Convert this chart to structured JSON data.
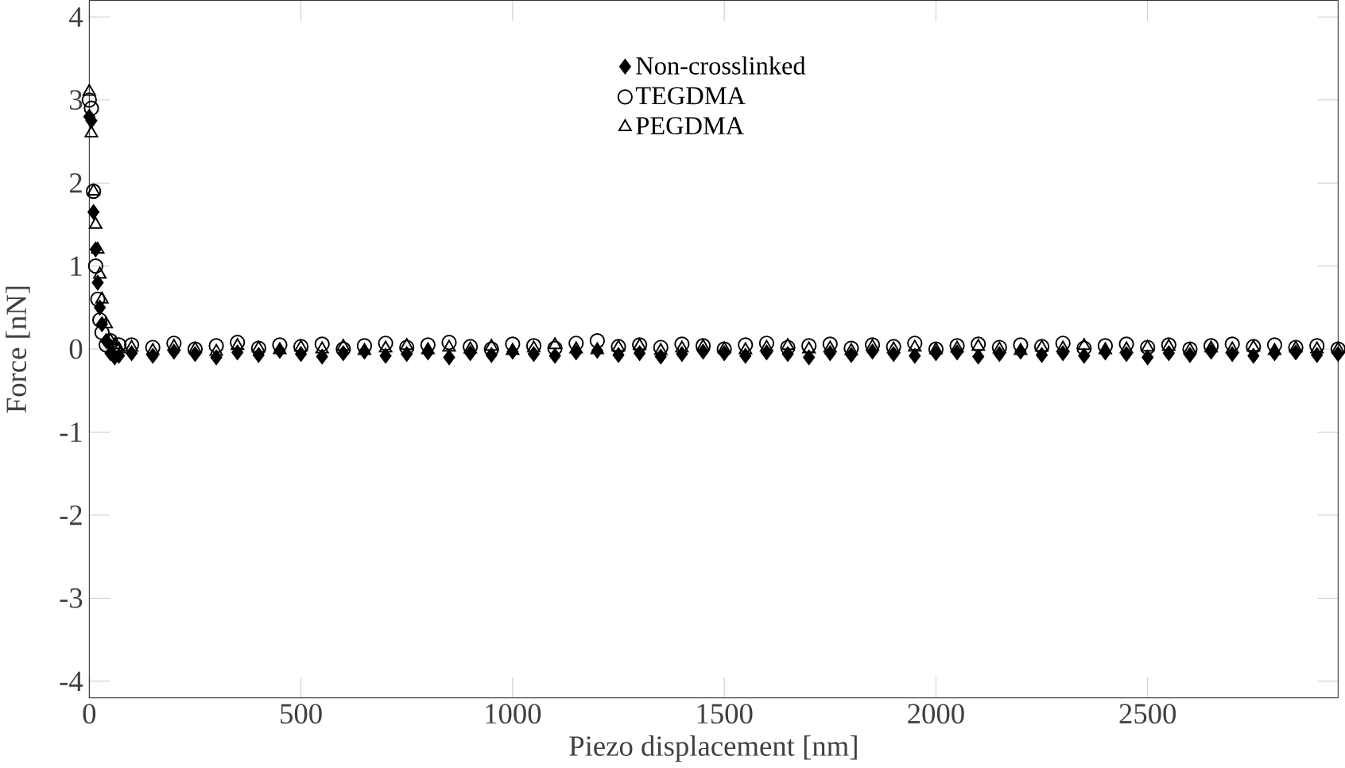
{
  "chart_data": {
    "type": "scatter",
    "xlabel": "Piezo displacement [nm]",
    "ylabel": "Force [nN]",
    "xlim": [
      0,
      2950
    ],
    "ylim": [
      -4.2,
      4.2
    ],
    "xticks": [
      0,
      500,
      1000,
      1500,
      2000,
      2500
    ],
    "yticks": [
      -4,
      -3,
      -2,
      -1,
      0,
      1,
      2,
      3,
      4
    ],
    "legend": "top",
    "grid": false,
    "x": [
      0,
      5,
      10,
      15,
      20,
      25,
      30,
      40,
      50,
      60,
      70,
      100,
      150,
      200,
      250,
      300,
      350,
      400,
      450,
      500,
      550,
      600,
      650,
      700,
      750,
      800,
      850,
      900,
      950,
      1000,
      1050,
      1100,
      1150,
      1200,
      1250,
      1300,
      1350,
      1400,
      1450,
      1500,
      1550,
      1600,
      1650,
      1700,
      1750,
      1800,
      1850,
      1900,
      1950,
      2000,
      2050,
      2100,
      2150,
      2200,
      2250,
      2300,
      2350,
      2400,
      2450,
      2500,
      2550,
      2600,
      2650,
      2700,
      2750,
      2800,
      2850,
      2900,
      2950
    ],
    "series": [
      {
        "name": "Non-crosslinked",
        "color": "#000000",
        "marker": "diamond",
        "values": [
          2.8,
          2.75,
          1.65,
          1.2,
          0.8,
          0.5,
          0.3,
          0.1,
          -0.05,
          -0.1,
          -0.08,
          -0.05,
          -0.08,
          -0.03,
          -0.06,
          -0.1,
          -0.04,
          -0.07,
          -0.02,
          -0.06,
          -0.09,
          -0.05,
          -0.03,
          -0.08,
          -0.06,
          -0.04,
          -0.1,
          -0.05,
          -0.07,
          -0.03,
          -0.06,
          -0.08,
          -0.04,
          -0.02,
          -0.07,
          -0.05,
          -0.09,
          -0.06,
          -0.03,
          -0.05,
          -0.08,
          -0.04,
          -0.06,
          -0.1,
          -0.05,
          -0.07,
          -0.03,
          -0.06,
          -0.08,
          -0.05,
          -0.04,
          -0.09,
          -0.06,
          -0.03,
          -0.07,
          -0.05,
          -0.08,
          -0.04,
          -0.06,
          -0.1,
          -0.05,
          -0.07,
          -0.03,
          -0.06,
          -0.08,
          -0.05,
          -0.04,
          -0.07,
          -0.06
        ]
      },
      {
        "name": "TEGDMA",
        "color": "#000000",
        "marker": "circle",
        "values": [
          3.0,
          2.9,
          1.9,
          1.0,
          0.6,
          0.35,
          0.2,
          0.05,
          0.1,
          0.0,
          0.05,
          0.05,
          0.02,
          0.07,
          0.0,
          0.04,
          0.08,
          0.01,
          0.05,
          0.03,
          0.06,
          0.0,
          0.04,
          0.07,
          0.02,
          0.05,
          0.08,
          0.03,
          0.0,
          0.06,
          0.04,
          0.01,
          0.07,
          0.1,
          0.03,
          0.05,
          0.02,
          0.06,
          0.04,
          0.0,
          0.05,
          0.07,
          0.02,
          0.04,
          0.06,
          0.01,
          0.05,
          0.03,
          0.07,
          0.0,
          0.04,
          0.06,
          0.02,
          0.05,
          0.03,
          0.07,
          0.01,
          0.04,
          0.06,
          0.02,
          0.05,
          0.0,
          0.04,
          0.06,
          0.03,
          0.05,
          0.02,
          0.04,
          0.0
        ]
      },
      {
        "name": "PEGDMA",
        "color": "#000000",
        "marker": "triangle",
        "values": [
          3.1,
          2.6,
          1.9,
          1.5,
          1.2,
          0.9,
          0.6,
          0.3,
          0.1,
          0.05,
          0.0,
          0.02,
          -0.02,
          0.03,
          0.0,
          -0.03,
          0.04,
          0.01,
          -0.01,
          0.02,
          0.0,
          0.03,
          -0.02,
          0.01,
          0.04,
          -0.01,
          0.02,
          0.0,
          0.03,
          -0.02,
          0.01,
          0.05,
          0.0,
          -0.01,
          0.02,
          0.04,
          -0.02,
          0.01,
          0.03,
          0.0,
          -0.01,
          0.02,
          0.04,
          0.0,
          0.01,
          -0.02,
          0.03,
          0.0,
          0.02,
          -0.01,
          0.01,
          0.03,
          0.0,
          -0.02,
          0.02,
          0.01,
          0.04,
          -0.01,
          0.0,
          0.02,
          0.03,
          -0.01,
          0.01,
          0.0,
          0.02,
          -0.02,
          0.01,
          0.0,
          0.0
        ]
      }
    ]
  }
}
